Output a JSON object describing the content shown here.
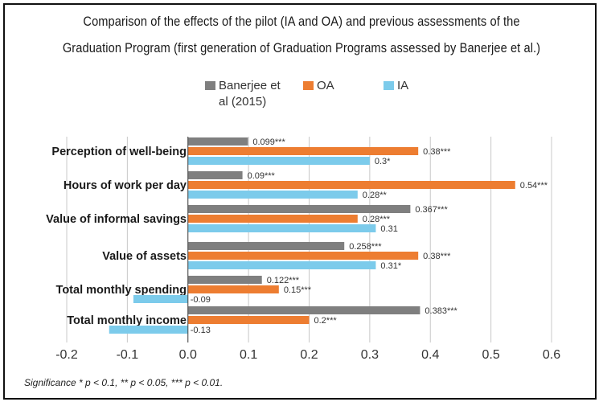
{
  "title_line1": "Comparison of the effects of the pilot (IA and OA) and previous assessments of the",
  "title_line2": "Graduation Program (first generation of Graduation Programs assessed by Banerjee et al.)",
  "footnote": "Significance * p < 0.1, ** p < 0.05, *** p < 0.01.",
  "colors": {
    "banerjee": "#7f7f7f",
    "oa": "#ed7d31",
    "ia": "#7ccbeb",
    "grid": "#c8c8c8",
    "axis": "#444444"
  },
  "chart_data": {
    "type": "bar",
    "orientation": "horizontal",
    "categories": [
      "Perception of well-being",
      "Hours of work per day",
      "Value of informal savings",
      "Value of assets",
      "Total monthly spending",
      "Total monthly income"
    ],
    "series": [
      {
        "name": "Banerjee et al (2015)",
        "legend_lines": [
          "Banerjee et",
          "al (2015)"
        ],
        "color": "#7f7f7f",
        "values": [
          0.099,
          0.09,
          0.367,
          0.258,
          0.122,
          0.383
        ],
        "labels": [
          "0.099***",
          "0.09***",
          "0.367***",
          "0.258***",
          "0.122***",
          "0.383***"
        ]
      },
      {
        "name": "OA",
        "legend_lines": [
          "OA"
        ],
        "color": "#ed7d31",
        "values": [
          0.38,
          0.54,
          0.28,
          0.38,
          0.15,
          0.2
        ],
        "labels": [
          "0.38***",
          "0.54***",
          "0.28***",
          "0.38***",
          "0.15***",
          "0.2***"
        ]
      },
      {
        "name": "IA",
        "legend_lines": [
          "IA"
        ],
        "color": "#7ccbeb",
        "values": [
          0.3,
          0.28,
          0.31,
          0.31,
          -0.09,
          -0.13
        ],
        "labels": [
          "0.3*",
          "0.28**",
          "0.31",
          "0.31*",
          "-0.09",
          "-0.13"
        ]
      }
    ],
    "xlim": [
      -0.2,
      0.6
    ],
    "xticks": [
      -0.2,
      -0.1,
      0.0,
      0.1,
      0.2,
      0.3,
      0.4,
      0.5,
      0.6
    ],
    "xtick_labels": [
      "-0.2",
      "-0.1",
      "0.0",
      "0.1",
      "0.2",
      "0.3",
      "0.4",
      "0.5",
      "0.6"
    ],
    "grid": "vertical",
    "legend_position": "top"
  }
}
